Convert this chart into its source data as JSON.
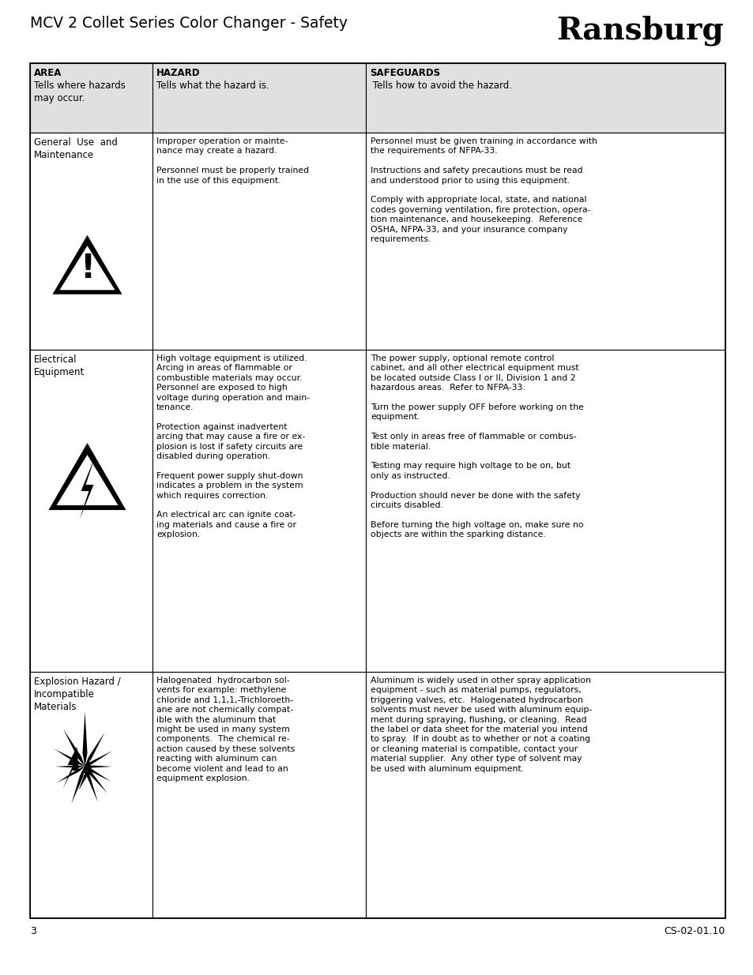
{
  "page_title": "MCV 2 Collet Series Color Changer - Safety",
  "brand": "Ransburg",
  "page_number": "3",
  "doc_number": "CS-02-01.10",
  "background_color": "#ffffff",
  "table_bg_header": "#e0e0e0",
  "col1_header": "AREA",
  "col1_sub": "Tells where hazards\nmay occur.",
  "col2_header": "HAZARD",
  "col2_sub": "Tells what the hazard is.",
  "col3_header": "SAFEGUARDS",
  "col3_sub": " Tells how to avoid the hazard.",
  "row0_area": "General  Use  and\nMaintenance",
  "row0_hazard": "Improper operation or mainte-\nnance may create a hazard.\n\nPersonnel must be properly trained\nin the use of this equipment.",
  "row0_safe": "Personnel must be given training in accordance with\nthe requirements of NFPA-33.\n\nInstructions and safety precautions must be read\nand understood prior to using this equipment.\n\nComply with appropriate local, state, and national\ncodes governing ventilation, fire protection, opera-\ntion maintenance, and housekeeping.  Reference\nOSHA, NFPA-33, and your insurance company\nrequirements.",
  "row1_area": "Electrical\nEquipment",
  "row1_hazard": "High voltage equipment is utilized.\nArcing in areas of flammable or\ncombustible materials may occur.\nPersonnel are exposed to high\nvoltage during operation and main-\ntenance.\n\nProtection against inadvertent\narcing that may cause a fire or ex-\nplosion is lost if safety circuits are\ndisabled during operation.\n\nFrequent power supply shut-down\nindicates a problem in the system\nwhich requires correction.\n\nAn electrical arc can ignite coat-\ning materials and cause a fire or\nexplosion.",
  "row1_safe": "The power supply, optional remote control\ncabinet, and all other electrical equipment must\nbe located outside Class I or II, Division 1 and 2\nhazardous areas.  Refer to NFPA-33.\n\nTurn the power supply OFF before working on the\nequipment.\n\nTest only in areas free of flammable or combus-\ntible material.\n\nTesting may require high voltage to be on, but\nonly as instructed.\n\nProduction should never be done with the safety\ncircuits disabled.\n\nBefore turning the high voltage on, make sure no\nobjects are within the sparking distance.",
  "row2_area": "Explosion Hazard /\nIncompatible\nMaterials",
  "row2_hazard": "Halogenated  hydrocarbon sol-\nvents for example: methylene\nchloride and 1,1,1,-Trichloroeth-\nane are not chemically compat-\nible with the aluminum that\nmight be used in many system\ncomponents.  The chemical re-\naction caused by these solvents\nreacting with aluminum can\nbecome violent and lead to an\nequipment explosion.",
  "row2_safe": "Aluminum is widely used in other spray application\nequipment - such as material pumps, regulators,\ntriggering valves, etc.  Halogenated hydrocarbon\nsolvents must never be used with aluminum equip-\nment during spraying, flushing, or cleaning.  Read\nthe label or data sheet for the material you intend\nto spray.  If in doubt as to whether or not a coating\nor cleaning material is compatible, contact your\nmaterial supplier.  Any other type of solvent may\nbe used with aluminum equipment."
}
